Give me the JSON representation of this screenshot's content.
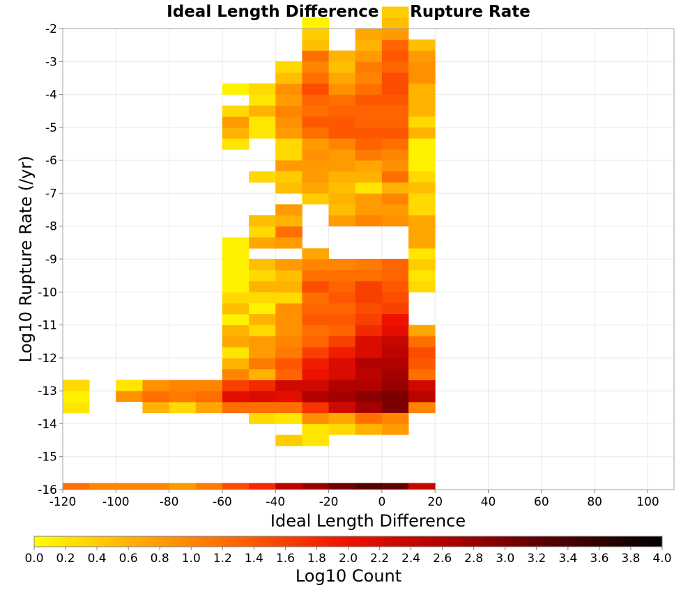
{
  "chart_data": {
    "type": "heatmap",
    "title": "Ideal Length Difference vs Rupture Rate",
    "xlabel": "Ideal Length Difference",
    "ylabel": "Log10 Rupture Rate (/yr)",
    "colorbar_label": "Log10 Count",
    "xlim": [
      -120,
      110
    ],
    "ylim": [
      -16,
      -2
    ],
    "x_ticks": [
      -120,
      -100,
      -80,
      -60,
      -40,
      -20,
      0,
      20,
      40,
      60,
      80,
      100
    ],
    "y_ticks": [
      -2,
      -3,
      -4,
      -5,
      -6,
      -7,
      -8,
      -9,
      -10,
      -11,
      -12,
      -13,
      -14,
      -15,
      -16
    ],
    "x_tick_labels": [
      "-120",
      "-100",
      "-80",
      "-60",
      "-40",
      "-20",
      "0",
      "20",
      "40",
      "60",
      "80",
      "100"
    ],
    "y_tick_labels": [
      "-2",
      "-3",
      "-4",
      "-5",
      "-6",
      "-7",
      "-8",
      "-9",
      "-10",
      "-11",
      "-12",
      "-13",
      "-14",
      "-15",
      "-16"
    ],
    "color_range": [
      0,
      4
    ],
    "colorbar_ticks": [
      "0.0",
      "0.2",
      "0.4",
      "0.6",
      "0.8",
      "1.0",
      "1.2",
      "1.4",
      "1.6",
      "1.8",
      "2.0",
      "2.2",
      "2.4",
      "2.6",
      "2.8",
      "3.0",
      "3.2",
      "3.4",
      "3.6",
      "3.8",
      "4.0"
    ],
    "colormap": [
      "#ffff00",
      "#ffaa00",
      "#ff6000",
      "#ee1100",
      "#aa0000",
      "#500000",
      "#000000"
    ],
    "grid": true,
    "bin_width_x": 10,
    "bin_height_y": 0.3333,
    "columns": [
      {
        "x": -120,
        "rows": [
          {
            "y0": -13.67,
            "v": [
              0.2,
              0.1
            ]
          },
          {
            "y0": -13.0,
            "v": [
              0.3
            ]
          },
          {
            "y0": -16.0,
            "v": [
              1.2
            ]
          }
        ]
      },
      {
        "x": -110,
        "rows": [
          {
            "y0": -16.0,
            "v": [
              1.0
            ]
          }
        ]
      },
      {
        "x": -100,
        "rows": [
          {
            "y0": -13.33,
            "v": [
              0.9,
              0.2
            ]
          },
          {
            "y0": -16.0,
            "v": [
              1.0
            ]
          }
        ]
      },
      {
        "x": -90,
        "rows": [
          {
            "y0": -13.67,
            "v": [
              0.6,
              1.2,
              0.9
            ]
          },
          {
            "y0": -16.0,
            "v": [
              1.0
            ]
          }
        ]
      },
      {
        "x": -80,
        "rows": [
          {
            "y0": -13.67,
            "v": [
              0.3,
              1.1,
              1.0
            ]
          },
          {
            "y0": -16.0,
            "v": [
              0.8
            ]
          }
        ]
      },
      {
        "x": -70,
        "rows": [
          {
            "y0": -13.67,
            "v": [
              0.7,
              1.2,
              1.0
            ]
          },
          {
            "y0": -16.0,
            "v": [
              1.1
            ]
          }
        ]
      },
      {
        "x": -60,
        "rows": [
          {
            "y0": -13.67,
            "v": [
              1.2,
              2.1,
              1.6
            ]
          },
          {
            "y0": -12.67,
            "v": [
              1.0,
              0.6,
              0.2,
              0.7,
              0.6
            ]
          },
          {
            "y0": -11.0,
            "v": [
              0.1
            ]
          },
          {
            "y0": -10.67,
            "v": [
              0.5,
              0.3,
              0.1,
              0.1,
              0.1,
              0.1,
              0.1
            ]
          },
          {
            "y0": -5.67,
            "v": [
              0.2,
              0.6,
              0.8,
              0.3
            ]
          },
          {
            "y0": -4.0,
            "v": [
              0.1
            ]
          },
          {
            "y0": -16.0,
            "v": [
              1.5
            ]
          }
        ]
      },
      {
        "x": -50,
        "rows": [
          {
            "y0": -14.0,
            "v": [
              0.3,
              1.2,
              2.2,
              1.8
            ]
          },
          {
            "y0": -12.67,
            "v": [
              0.6,
              1.1,
              0.8,
              0.8
            ]
          },
          {
            "y0": -11.33,
            "v": [
              0.3,
              0.6,
              0.1,
              0.3,
              0.6,
              0.3
            ]
          },
          {
            "y0": -9.33,
            "v": [
              0.5
            ]
          },
          {
            "y0": -8.67,
            "v": [
              0.7,
              0.3,
              0.5
            ]
          },
          {
            "y0": -6.67,
            "v": [
              0.3
            ]
          },
          {
            "y0": -5.33,
            "v": [
              0.2,
              0.2,
              0.6,
              0.2,
              0.3
            ]
          },
          {
            "y0": -16.0,
            "v": [
              1.8
            ]
          }
        ]
      },
      {
        "x": -40,
        "rows": [
          {
            "y0": -14.0,
            "v": [
              0.2,
              1.2,
              2.1,
              2.3
            ]
          },
          {
            "y0": -12.67,
            "v": [
              1.3,
              1.4,
              1.1,
              1.0,
              0.9,
              0.9,
              0.9,
              0.3,
              0.6,
              0.5,
              0.8
            ]
          },
          {
            "y0": -8.67,
            "v": [
              0.8,
              1.2,
              0.6,
              0.8
            ]
          },
          {
            "y0": -7.0,
            "v": [
              0.5
            ]
          },
          {
            "y0": -6.67,
            "v": [
              0.4
            ]
          },
          {
            "y0": -6.33,
            "v": [
              0.8,
              0.3
            ]
          },
          {
            "y0": -5.67,
            "v": [
              0.3,
              0.8,
              0.9,
              1.0,
              0.8,
              0.9,
              0.5,
              0.4
            ]
          },
          {
            "y0": -3.33,
            "v": [
              0.3
            ]
          },
          {
            "y0": -14.67,
            "v": [
              0.4
            ]
          },
          {
            "y0": -16.0,
            "v": [
              2.5
            ]
          }
        ]
      },
      {
        "x": -30,
        "rows": [
          {
            "y0": -14.67,
            "v": [
              0.2,
              0.2,
              0.9,
              1.7,
              2.6,
              2.3,
              2.0,
              1.9,
              1.6,
              1.3,
              1.2,
              1.4,
              1.3,
              1.2,
              1.5,
              1.2,
              1.0,
              0.7
            ]
          },
          {
            "y0": -7.33,
            "v": [
              0.4,
              0.7,
              0.8,
              0.8,
              0.9,
              0.8,
              1.2,
              1.4,
              1.2,
              1.3,
              1.5,
              1.2,
              1.0,
              1.2,
              0.5,
              0.4,
              0.1
            ]
          },
          {
            "y0": -16.0,
            "v": [
              2.8
            ]
          }
        ]
      },
      {
        "x": -20,
        "rows": [
          {
            "y0": -14.33,
            "v": [
              0.3,
              0.7,
              2.3,
              2.7,
              2.6,
              2.2,
              2.2,
              1.9,
              1.6,
              1.3,
              1.4,
              1.3,
              1.4,
              1.3,
              1.2,
              1.0
            ]
          },
          {
            "y0": -8.0,
            "v": [
              0.8,
              0.5,
              0.6,
              0.5,
              0.6,
              0.8,
              0.8,
              1.0,
              1.4,
              1.4,
              1.3,
              1.2,
              0.9,
              0.7,
              0.5,
              0.6
            ]
          },
          {
            "y0": -16.0,
            "v": [
              3.1
            ]
          }
        ]
      },
      {
        "x": -10,
        "rows": [
          {
            "y0": -14.33,
            "v": [
              0.6,
              1.2,
              2.7,
              2.9,
              2.6,
              2.5,
              2.6,
              2.2,
              2.2,
              1.8,
              1.6,
              1.5,
              1.6,
              1.6,
              1.2,
              1.1
            ]
          },
          {
            "y0": -8.0,
            "v": [
              1.0,
              0.8,
              0.8,
              0.2,
              0.6,
              0.7,
              1.1,
              1.3,
              1.4,
              1.3,
              1.3,
              1.4,
              1.2,
              1.0,
              1.1,
              0.8,
              0.6,
              0.7
            ]
          },
          {
            "y0": -16.0,
            "v": [
              3.3
            ]
          }
        ]
      },
      {
        "x": 0,
        "rows": [
          {
            "y0": -14.33,
            "v": [
              0.8,
              1.0,
              3.0,
              3.0,
              2.8,
              2.7,
              2.6,
              2.5,
              2.4,
              2.1,
              2.0,
              1.6,
              1.5,
              1.4,
              1.3,
              1.3
            ]
          },
          {
            "y0": -8.0,
            "v": [
              0.9,
              0.8,
              1.0,
              0.6,
              1.2,
              0.9,
              1.0,
              1.2,
              1.4,
              1.3,
              1.3,
              1.4,
              1.5,
              1.5,
              1.3,
              1.4,
              1.3,
              0.8,
              0.5,
              0.4
            ]
          },
          {
            "y0": -16.0,
            "v": [
              3.2
            ]
          }
        ]
      },
      {
        "x": 10,
        "rows": [
          {
            "y0": -13.67,
            "v": [
              1.0,
              2.5,
              2.3,
              1.2,
              1.4,
              1.5,
              1.2,
              0.7
            ]
          },
          {
            "y0": -10.0,
            "v": [
              0.3,
              0.2,
              0.4,
              0.2,
              0.7,
              0.7,
              0.7,
              0.3
            ]
          },
          {
            "y0": -7.33,
            "v": [
              0.3,
              0.5,
              0.3
            ]
          },
          {
            "y0": -6.33,
            "v": [
              0.1,
              0.1,
              0.1,
              0.6,
              0.3,
              0.6,
              0.6,
              0.6,
              0.9,
              0.9,
              0.8,
              0.5
            ]
          },
          {
            "y0": -16.0,
            "v": [
              2.4
            ]
          }
        ]
      }
    ]
  }
}
